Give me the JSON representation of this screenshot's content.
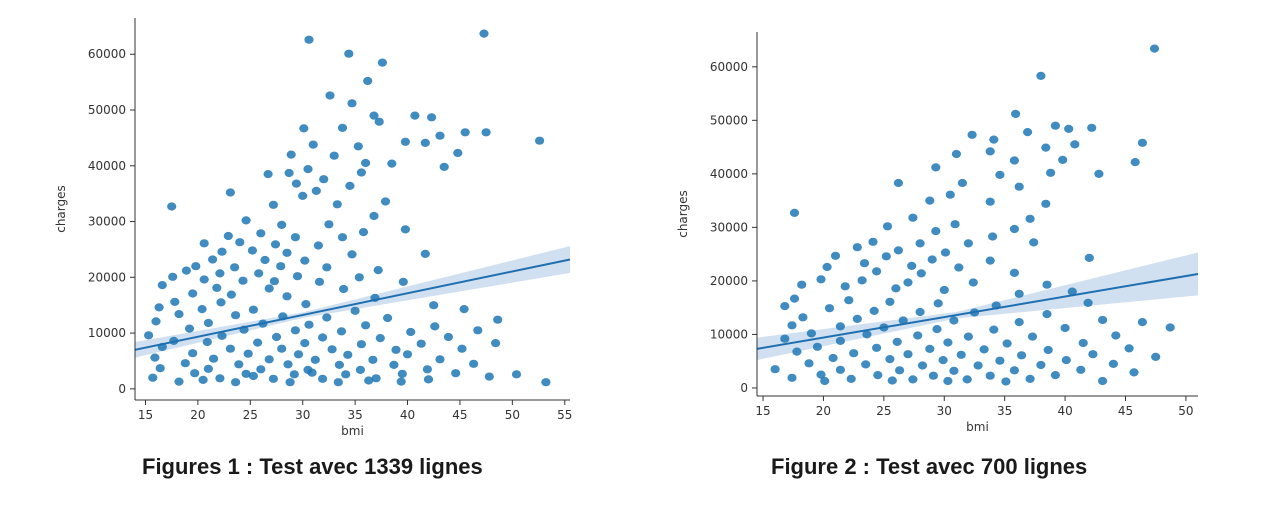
{
  "colors": {
    "point": "#1f77b4",
    "line": "#1f6fb0",
    "band": "#a9c6e4",
    "axis": "#333333"
  },
  "chart_data": [
    {
      "type": "scatter",
      "title": "",
      "xlabel": "bmi",
      "ylabel": "charges",
      "caption": "Figures 1 :  Test avec 1339  lignes",
      "xlim": [
        14,
        55.5
      ],
      "ylim": [
        -2000,
        66500
      ],
      "xticks": [
        15,
        20,
        25,
        30,
        35,
        40,
        45,
        50,
        55
      ],
      "yticks": [
        0,
        10000,
        20000,
        30000,
        40000,
        50000,
        60000
      ],
      "grid": false,
      "regression_line": {
        "x": [
          14,
          55.5
        ],
        "y": [
          7000,
          23200
        ]
      },
      "confidence_band": {
        "x": [
          14,
          30,
          55.5
        ],
        "lower": [
          5600,
          12700,
          20800
        ],
        "upper": [
          8400,
          13700,
          25600
        ]
      },
      "points": [
        [
          17.5,
          32700
        ],
        [
          47.3,
          63700
        ],
        [
          30.6,
          62600
        ],
        [
          34.4,
          60100
        ],
        [
          37.6,
          58500
        ],
        [
          36.2,
          55200
        ],
        [
          32.6,
          52600
        ],
        [
          52.6,
          44500
        ],
        [
          34.7,
          51200
        ],
        [
          36.8,
          49000
        ],
        [
          40.7,
          49000
        ],
        [
          42.3,
          48700
        ],
        [
          45.5,
          46000
        ],
        [
          47.5,
          46000
        ],
        [
          44.8,
          42300
        ],
        [
          43.1,
          45400
        ],
        [
          30.1,
          46700
        ],
        [
          33.8,
          46800
        ],
        [
          37.3,
          47900
        ],
        [
          31.0,
          43800
        ],
        [
          35.3,
          43500
        ],
        [
          39.8,
          44300
        ],
        [
          41.7,
          44100
        ],
        [
          28.9,
          42000
        ],
        [
          33.0,
          41800
        ],
        [
          36.0,
          40500
        ],
        [
          38.5,
          40400
        ],
        [
          30.5,
          39400
        ],
        [
          35.6,
          38800
        ],
        [
          43.5,
          39800
        ],
        [
          28.7,
          38700
        ],
        [
          32.0,
          37600
        ],
        [
          34.5,
          36400
        ],
        [
          26.7,
          38500
        ],
        [
          29.4,
          36800
        ],
        [
          31.3,
          35500
        ],
        [
          23.1,
          35200
        ],
        [
          37.9,
          33600
        ],
        [
          30.0,
          34600
        ],
        [
          33.3,
          33100
        ],
        [
          27.2,
          33000
        ],
        [
          36.8,
          31000
        ],
        [
          24.6,
          30200
        ],
        [
          28.0,
          29400
        ],
        [
          32.5,
          29500
        ],
        [
          35.8,
          28100
        ],
        [
          39.8,
          28600
        ],
        [
          26.0,
          27900
        ],
        [
          22.9,
          27400
        ],
        [
          29.3,
          27200
        ],
        [
          33.8,
          27200
        ],
        [
          20.6,
          26100
        ],
        [
          24.0,
          26300
        ],
        [
          27.4,
          25900
        ],
        [
          31.5,
          25700
        ],
        [
          25.2,
          24800
        ],
        [
          22.3,
          24600
        ],
        [
          28.5,
          24400
        ],
        [
          34.7,
          24100
        ],
        [
          41.7,
          24200
        ],
        [
          21.4,
          23200
        ],
        [
          26.4,
          23100
        ],
        [
          30.2,
          23000
        ],
        [
          19.8,
          22000
        ],
        [
          23.5,
          21800
        ],
        [
          27.9,
          22000
        ],
        [
          32.3,
          21800
        ],
        [
          37.2,
          21300
        ],
        [
          18.9,
          21200
        ],
        [
          22.1,
          20700
        ],
        [
          25.8,
          20700
        ],
        [
          29.5,
          20200
        ],
        [
          35.4,
          20000
        ],
        [
          17.6,
          20100
        ],
        [
          20.6,
          19600
        ],
        [
          24.3,
          19400
        ],
        [
          27.3,
          19300
        ],
        [
          31.6,
          19200
        ],
        [
          39.6,
          19200
        ],
        [
          16.6,
          18600
        ],
        [
          21.8,
          18100
        ],
        [
          26.8,
          18000
        ],
        [
          33.9,
          17900
        ],
        [
          19.5,
          17100
        ],
        [
          23.2,
          16900
        ],
        [
          28.5,
          16600
        ],
        [
          36.9,
          16300
        ],
        [
          17.8,
          15600
        ],
        [
          22.2,
          15500
        ],
        [
          30.3,
          15200
        ],
        [
          42.5,
          15000
        ],
        [
          16.3,
          14600
        ],
        [
          20.4,
          14300
        ],
        [
          25.3,
          14200
        ],
        [
          35.0,
          14000
        ],
        [
          45.4,
          14300
        ],
        [
          18.2,
          13400
        ],
        [
          23.6,
          13200
        ],
        [
          28.1,
          13000
        ],
        [
          32.3,
          12800
        ],
        [
          38.1,
          12700
        ],
        [
          48.6,
          12400
        ],
        [
          16.0,
          12100
        ],
        [
          21.0,
          11800
        ],
        [
          26.2,
          11700
        ],
        [
          30.6,
          11500
        ],
        [
          36.0,
          11400
        ],
        [
          42.6,
          11200
        ],
        [
          19.2,
          10800
        ],
        [
          24.4,
          10600
        ],
        [
          29.3,
          10500
        ],
        [
          33.7,
          10300
        ],
        [
          40.3,
          10200
        ],
        [
          46.7,
          10500
        ],
        [
          15.3,
          9600
        ],
        [
          22.3,
          9500
        ],
        [
          27.5,
          9300
        ],
        [
          31.9,
          9200
        ],
        [
          37.4,
          9100
        ],
        [
          43.9,
          9300
        ],
        [
          17.7,
          8600
        ],
        [
          20.9,
          8400
        ],
        [
          25.7,
          8300
        ],
        [
          30.2,
          8200
        ],
        [
          35.6,
          8000
        ],
        [
          41.3,
          8100
        ],
        [
          48.4,
          8200
        ],
        [
          16.6,
          7500
        ],
        [
          23.1,
          7200
        ],
        [
          28.0,
          7200
        ],
        [
          32.8,
          7100
        ],
        [
          38.9,
          7000
        ],
        [
          45.2,
          7200
        ],
        [
          19.5,
          6400
        ],
        [
          24.8,
          6300
        ],
        [
          29.6,
          6200
        ],
        [
          34.3,
          6100
        ],
        [
          40.0,
          6200
        ],
        [
          15.9,
          5600
        ],
        [
          21.5,
          5400
        ],
        [
          26.8,
          5300
        ],
        [
          31.2,
          5200
        ],
        [
          36.7,
          5200
        ],
        [
          43.1,
          5300
        ],
        [
          18.8,
          4600
        ],
        [
          23.9,
          4400
        ],
        [
          28.6,
          4400
        ],
        [
          33.5,
          4300
        ],
        [
          38.7,
          4300
        ],
        [
          46.3,
          4500
        ],
        [
          16.4,
          3700
        ],
        [
          21.0,
          3600
        ],
        [
          26.0,
          3500
        ],
        [
          30.5,
          3400
        ],
        [
          35.5,
          3400
        ],
        [
          41.9,
          3500
        ],
        [
          19.7,
          2800
        ],
        [
          24.6,
          2700
        ],
        [
          29.2,
          2600
        ],
        [
          34.1,
          2600
        ],
        [
          39.5,
          2700
        ],
        [
          44.6,
          2800
        ],
        [
          15.7,
          2000
        ],
        [
          22.1,
          1900
        ],
        [
          27.2,
          1800
        ],
        [
          31.9,
          1800
        ],
        [
          37.0,
          1900
        ],
        [
          50.4,
          2600
        ],
        [
          18.2,
          1300
        ],
        [
          23.6,
          1200
        ],
        [
          28.8,
          1200
        ],
        [
          33.4,
          1200
        ],
        [
          39.4,
          1300
        ],
        [
          53.2,
          1200
        ],
        [
          20.5,
          1600
        ],
        [
          25.3,
          2300
        ],
        [
          30.9,
          2900
        ],
        [
          36.3,
          1500
        ],
        [
          42.0,
          1700
        ],
        [
          47.8,
          2200
        ]
      ]
    },
    {
      "type": "scatter",
      "title": "",
      "xlabel": "bmi",
      "ylabel": "charges",
      "caption": "Figure 2 : Test avec 700 lignes",
      "xlim": [
        14.5,
        51
      ],
      "ylim": [
        -1500,
        66500
      ],
      "xticks": [
        15,
        20,
        25,
        30,
        35,
        40,
        45,
        50
      ],
      "yticks": [
        0,
        10000,
        20000,
        30000,
        40000,
        50000,
        60000
      ],
      "grid": false,
      "regression_line": {
        "x": [
          14.5,
          51
        ],
        "y": [
          7300,
          21300
        ]
      },
      "confidence_band": {
        "x": [
          14.5,
          31,
          51
        ],
        "lower": [
          5200,
          13000,
          17300
        ],
        "upper": [
          9400,
          14200,
          25300
        ]
      },
      "points": [
        [
          17.6,
          32700
        ],
        [
          47.4,
          63400
        ],
        [
          38.0,
          58300
        ],
        [
          35.9,
          51200
        ],
        [
          39.2,
          49000
        ],
        [
          40.3,
          48400
        ],
        [
          42.2,
          48600
        ],
        [
          45.8,
          42200
        ],
        [
          46.4,
          45800
        ],
        [
          40.8,
          45500
        ],
        [
          32.3,
          47300
        ],
        [
          36.9,
          47800
        ],
        [
          34.1,
          46400
        ],
        [
          38.4,
          44900
        ],
        [
          33.8,
          44200
        ],
        [
          31.0,
          43700
        ],
        [
          35.8,
          42500
        ],
        [
          39.8,
          42600
        ],
        [
          29.3,
          41200
        ],
        [
          34.6,
          39800
        ],
        [
          38.8,
          40200
        ],
        [
          42.8,
          40000
        ],
        [
          31.5,
          38300
        ],
        [
          36.2,
          37600
        ],
        [
          26.2,
          38300
        ],
        [
          30.5,
          36100
        ],
        [
          33.8,
          34800
        ],
        [
          38.4,
          34400
        ],
        [
          28.8,
          35000
        ],
        [
          37.1,
          31600
        ],
        [
          27.4,
          31800
        ],
        [
          30.9,
          30600
        ],
        [
          35.8,
          29700
        ],
        [
          25.3,
          30200
        ],
        [
          29.3,
          29300
        ],
        [
          34.0,
          28300
        ],
        [
          24.1,
          27300
        ],
        [
          28.0,
          27000
        ],
        [
          32.0,
          27000
        ],
        [
          37.4,
          27200
        ],
        [
          22.8,
          26300
        ],
        [
          26.2,
          25700
        ],
        [
          30.1,
          25300
        ],
        [
          21.0,
          24700
        ],
        [
          25.2,
          24600
        ],
        [
          29.0,
          24000
        ],
        [
          33.8,
          23800
        ],
        [
          42.0,
          24300
        ],
        [
          23.4,
          23300
        ],
        [
          27.3,
          22800
        ],
        [
          31.2,
          22500
        ],
        [
          20.3,
          22600
        ],
        [
          24.4,
          21800
        ],
        [
          28.1,
          21400
        ],
        [
          35.8,
          21500
        ],
        [
          19.8,
          20300
        ],
        [
          23.2,
          20100
        ],
        [
          27.0,
          19700
        ],
        [
          32.4,
          19700
        ],
        [
          38.5,
          19300
        ],
        [
          18.2,
          19300
        ],
        [
          21.8,
          19000
        ],
        [
          26.0,
          18600
        ],
        [
          30.0,
          18300
        ],
        [
          36.2,
          17600
        ],
        [
          40.6,
          18000
        ],
        [
          17.6,
          16700
        ],
        [
          22.1,
          16400
        ],
        [
          25.5,
          16100
        ],
        [
          29.5,
          15800
        ],
        [
          34.3,
          15400
        ],
        [
          41.9,
          15900
        ],
        [
          16.8,
          15300
        ],
        [
          20.5,
          14900
        ],
        [
          24.2,
          14400
        ],
        [
          28.0,
          14200
        ],
        [
          32.5,
          14100
        ],
        [
          38.5,
          13800
        ],
        [
          18.3,
          13200
        ],
        [
          22.8,
          12900
        ],
        [
          26.6,
          12600
        ],
        [
          30.8,
          12600
        ],
        [
          36.2,
          12300
        ],
        [
          43.1,
          12700
        ],
        [
          17.4,
          11700
        ],
        [
          21.4,
          11500
        ],
        [
          25.0,
          11300
        ],
        [
          29.4,
          11000
        ],
        [
          34.1,
          10900
        ],
        [
          40.0,
          11200
        ],
        [
          46.4,
          12300
        ],
        [
          19.0,
          10200
        ],
        [
          23.6,
          10000
        ],
        [
          27.8,
          9800
        ],
        [
          32.0,
          9600
        ],
        [
          37.3,
          9600
        ],
        [
          44.2,
          9800
        ],
        [
          16.8,
          9200
        ],
        [
          21.4,
          8800
        ],
        [
          26.1,
          8600
        ],
        [
          30.3,
          8500
        ],
        [
          35.2,
          8300
        ],
        [
          41.5,
          8400
        ],
        [
          48.7,
          11300
        ],
        [
          19.5,
          7700
        ],
        [
          24.4,
          7500
        ],
        [
          28.8,
          7300
        ],
        [
          33.3,
          7200
        ],
        [
          38.6,
          7100
        ],
        [
          45.3,
          7400
        ],
        [
          17.8,
          6800
        ],
        [
          22.5,
          6500
        ],
        [
          27.0,
          6300
        ],
        [
          31.4,
          6200
        ],
        [
          36.4,
          6100
        ],
        [
          42.3,
          6300
        ],
        [
          20.8,
          5600
        ],
        [
          25.5,
          5400
        ],
        [
          29.9,
          5200
        ],
        [
          34.6,
          5100
        ],
        [
          40.1,
          5200
        ],
        [
          47.5,
          5800
        ],
        [
          18.8,
          4600
        ],
        [
          23.5,
          4400
        ],
        [
          28.2,
          4200
        ],
        [
          32.8,
          4200
        ],
        [
          38.0,
          4300
        ],
        [
          44.0,
          4500
        ],
        [
          16.0,
          3500
        ],
        [
          21.4,
          3400
        ],
        [
          26.3,
          3300
        ],
        [
          30.8,
          3200
        ],
        [
          35.8,
          3300
        ],
        [
          41.3,
          3400
        ],
        [
          19.8,
          2500
        ],
        [
          24.5,
          2400
        ],
        [
          29.1,
          2300
        ],
        [
          33.8,
          2300
        ],
        [
          39.2,
          2400
        ],
        [
          45.7,
          2900
        ],
        [
          17.4,
          1900
        ],
        [
          22.3,
          1700
        ],
        [
          27.4,
          1600
        ],
        [
          31.9,
          1600
        ],
        [
          37.1,
          1700
        ],
        [
          43.1,
          1300
        ],
        [
          20.1,
          1300
        ],
        [
          25.7,
          1400
        ],
        [
          30.3,
          1300
        ],
        [
          35.1,
          1200
        ]
      ]
    }
  ]
}
